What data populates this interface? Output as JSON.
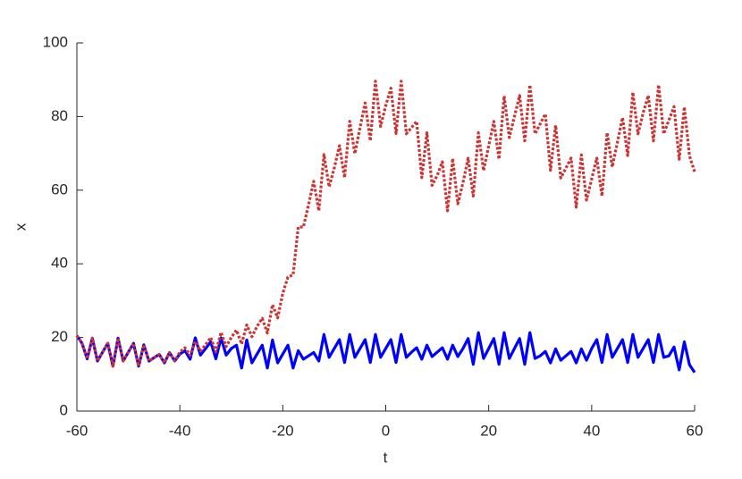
{
  "chart_data": {
    "type": "line",
    "xlabel": "t",
    "ylabel": "x",
    "x": [
      -60,
      -59,
      -58,
      -57,
      -56,
      -55,
      -54,
      -53,
      -52,
      -51,
      -50,
      -49,
      -48,
      -47,
      -46,
      -45,
      -44,
      -43,
      -42,
      -41,
      -40,
      -39,
      -38,
      -37,
      -36,
      -35,
      -34,
      -33,
      -32,
      -31,
      -30,
      -29,
      -28,
      -27,
      -26,
      -25,
      -24,
      -23,
      -22,
      -21,
      -20,
      -19,
      -18,
      -17,
      -16,
      -15,
      -14,
      -13,
      -12,
      -11,
      -10,
      -9,
      -8,
      -7,
      -6,
      -5,
      -4,
      -3,
      -2,
      -1,
      0,
      1,
      2,
      3,
      4,
      5,
      6,
      7,
      8,
      9,
      10,
      11,
      12,
      13,
      14,
      15,
      16,
      17,
      18,
      19,
      20,
      21,
      22,
      23,
      24,
      25,
      26,
      27,
      28,
      29,
      30,
      31,
      32,
      33,
      34,
      35,
      36,
      37,
      38,
      39,
      40,
      41,
      42,
      43,
      44,
      45,
      46,
      47,
      48,
      49,
      50,
      51,
      52,
      53,
      54,
      55,
      56,
      57,
      58,
      59,
      60
    ],
    "series": [
      {
        "color": "#0000ff",
        "style": "solid",
        "values": [
          20.5,
          18.4,
          14.2,
          19.8,
          13.6,
          16.0,
          18.4,
          12.2,
          19.8,
          13.6,
          16.0,
          18.4,
          12.2,
          18.0,
          13.6,
          14.5,
          15.4,
          13.1,
          15.9,
          13.6,
          15.5,
          16.4,
          14.1,
          19.9,
          15.2,
          17.0,
          18.8,
          14.2,
          19.9,
          15.2,
          17.0,
          17.9,
          11.7,
          19.3,
          13.1,
          15.5,
          17.9,
          11.7,
          19.3,
          13.1,
          15.5,
          17.9,
          11.7,
          16.4,
          14.1,
          15.0,
          15.9,
          13.6,
          20.8,
          14.6,
          17.0,
          19.4,
          13.2,
          20.8,
          14.6,
          17.0,
          19.4,
          13.2,
          20.8,
          14.6,
          17.0,
          19.4,
          13.2,
          20.8,
          14.6,
          16.0,
          17.2,
          14.1,
          17.9,
          14.8,
          16.0,
          17.2,
          14.1,
          17.9,
          14.8,
          17.0,
          19.7,
          12.7,
          21.3,
          14.3,
          17.0,
          19.7,
          12.7,
          21.3,
          14.3,
          17.0,
          19.7,
          12.7,
          21.3,
          14.3,
          15.0,
          16.2,
          13.1,
          16.9,
          13.8,
          15.0,
          16.2,
          13.1,
          16.9,
          13.8,
          17.0,
          19.4,
          13.2,
          20.8,
          14.6,
          17.0,
          19.4,
          13.2,
          20.8,
          14.6,
          17.0,
          19.4,
          13.2,
          20.8,
          14.6,
          15.0,
          17.4,
          11.2,
          18.8,
          12.6,
          10.5
        ]
      },
      {
        "color": "#cc3333",
        "style": "dotted",
        "values": [
          20.5,
          18.4,
          14.2,
          19.8,
          13.6,
          16.0,
          18.4,
          12.2,
          19.8,
          13.6,
          16.0,
          18.4,
          12.2,
          18.0,
          13.6,
          14.5,
          15.4,
          13.1,
          15.9,
          13.6,
          16.0,
          17.2,
          15.1,
          18.9,
          16.3,
          18.0,
          20.0,
          16.1,
          21.4,
          17.5,
          20.0,
          22.0,
          18.2,
          23.4,
          20.2,
          23.0,
          25.2,
          21.2,
          28.9,
          25.3,
          32.0,
          36.4,
          37.0,
          50.0,
          50.0,
          56.0,
          62.4,
          54.4,
          69.7,
          60.9,
          66.0,
          72.1,
          63.4,
          78.7,
          69.9,
          77.0,
          83.7,
          73.4,
          89.6,
          77.3,
          83.0,
          87.7,
          75.4,
          89.6,
          75.3,
          77.0,
          78.7,
          63.4,
          75.6,
          61.3,
          64.0,
          67.7,
          54.4,
          68.6,
          56.3,
          62.0,
          68.7,
          58.4,
          75.6,
          65.3,
          72.0,
          78.7,
          68.4,
          85.6,
          74.3,
          80.0,
          85.7,
          73.4,
          88.6,
          75.3,
          78.0,
          80.7,
          65.4,
          77.6,
          63.3,
          66.0,
          68.7,
          55.4,
          69.6,
          57.3,
          63.0,
          68.7,
          58.4,
          75.6,
          66.3,
          73.0,
          79.7,
          69.4,
          86.6,
          75.3,
          81.0,
          85.7,
          73.4,
          88.6,
          75.3,
          79.0,
          82.7,
          68.4,
          82.6,
          69.3,
          65.0
        ]
      }
    ],
    "xlim": [
      -60,
      60
    ],
    "xticks": [
      -60,
      -40,
      -20,
      0,
      20,
      40,
      60
    ],
    "ylim": [
      0,
      100
    ],
    "yticks": [
      0,
      20,
      40,
      60,
      80,
      100
    ],
    "grid": false
  }
}
